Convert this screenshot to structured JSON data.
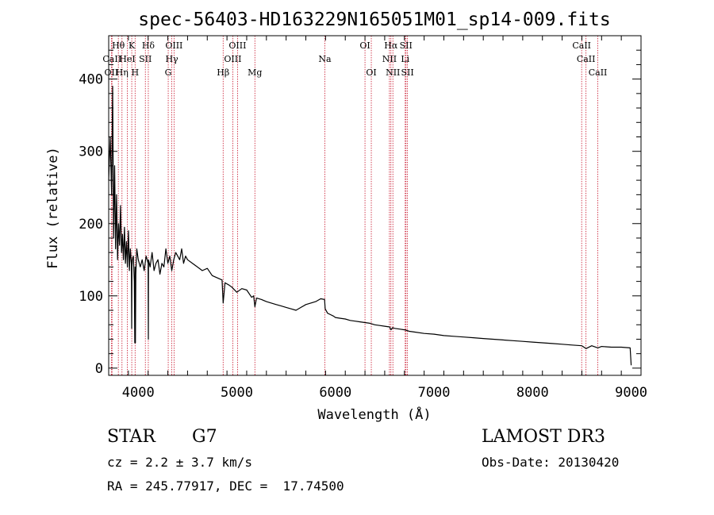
{
  "chart_data": {
    "type": "line",
    "title": "spec-56403-HD163229N165051M01_sp14-009.fits",
    "xlabel": "Wavelength (Å)",
    "ylabel": "Flux (relative)",
    "xlim": [
      3700,
      9100
    ],
    "ylim": [
      -10,
      460
    ],
    "xticks": [
      4000,
      5000,
      6000,
      7000,
      8000,
      9000
    ],
    "yticks": [
      0,
      100,
      200,
      300,
      400
    ],
    "colors": {
      "spectrum": "#000000",
      "lines": "#c8142b",
      "axes": "#000000"
    },
    "series": [
      {
        "name": "flux",
        "x": [
          3700,
          3715,
          3730,
          3740,
          3750,
          3760,
          3770,
          3780,
          3790,
          3800,
          3810,
          3820,
          3830,
          3840,
          3850,
          3860,
          3870,
          3880,
          3890,
          3900,
          3910,
          3920,
          3930,
          3933,
          3936,
          3940,
          3950,
          3960,
          3965,
          3968,
          3971,
          3975,
          3985,
          4000,
          4020,
          4040,
          4060,
          4080,
          4100,
          4102,
          4104,
          4120,
          4140,
          4160,
          4180,
          4200,
          4220,
          4240,
          4260,
          4280,
          4300,
          4320,
          4340,
          4360,
          4380,
          4400,
          4420,
          4440,
          4460,
          4480,
          4500,
          4550,
          4600,
          4650,
          4700,
          4750,
          4800,
          4850,
          4861,
          4880,
          4920,
          4950,
          5000,
          5050,
          5100,
          5150,
          5170,
          5183,
          5200,
          5250,
          5300,
          5350,
          5400,
          5450,
          5500,
          5550,
          5600,
          5650,
          5700,
          5750,
          5800,
          5850,
          5890,
          5896,
          5920,
          5950,
          5980,
          6000,
          6050,
          6100,
          6150,
          6200,
          6250,
          6300,
          6350,
          6400,
          6450,
          6500,
          6550,
          6563,
          6580,
          6600,
          6650,
          6700,
          6750,
          6800,
          6900,
          7000,
          7100,
          7200,
          7300,
          7400,
          7500,
          7600,
          7700,
          7800,
          7900,
          8000,
          8100,
          8200,
          8300,
          8400,
          8500,
          8542,
          8600,
          8662,
          8700,
          8800,
          8900,
          8990,
          9000
        ],
        "values": [
          260,
          320,
          240,
          390,
          180,
          280,
          165,
          240,
          150,
          200,
          170,
          225,
          160,
          185,
          150,
          195,
          145,
          175,
          140,
          190,
          135,
          165,
          145,
          55,
          140,
          150,
          155,
          120,
          35,
          140,
          35,
          130,
          165,
          150,
          140,
          150,
          135,
          155,
          145,
          40,
          150,
          140,
          160,
          135,
          145,
          150,
          130,
          145,
          140,
          165,
          145,
          155,
          135,
          150,
          160,
          155,
          150,
          165,
          145,
          155,
          150,
          145,
          140,
          135,
          138,
          128,
          125,
          122,
          90,
          118,
          115,
          112,
          105,
          110,
          108,
          98,
          100,
          85,
          97,
          95,
          92,
          90,
          88,
          86,
          84,
          82,
          80,
          84,
          88,
          90,
          92,
          96,
          95,
          82,
          76,
          74,
          72,
          70,
          69,
          68,
          66,
          65,
          64,
          63,
          62,
          60,
          59,
          58,
          57,
          53,
          56,
          55,
          54,
          53,
          51,
          50,
          48,
          47,
          45,
          44,
          43,
          42,
          41,
          40,
          39,
          38,
          37,
          36,
          35,
          34,
          33,
          32,
          31,
          27,
          31,
          28,
          30,
          29,
          29,
          28,
          4
        ]
      }
    ],
    "spectral_lines": [
      {
        "label": "Hθ",
        "wavelength": 3798,
        "row": 1
      },
      {
        "label": "CaII",
        "wavelength": 3734,
        "row": 2
      },
      {
        "label": "OII",
        "wavelength": 3727,
        "row": 3
      },
      {
        "label": "Hη",
        "wavelength": 3835,
        "row": 3
      },
      {
        "label": "HeI",
        "wavelength": 3889,
        "row": 2
      },
      {
        "label": "K",
        "wavelength": 3934,
        "row": 1
      },
      {
        "label": "SII",
        "wavelength": 4072,
        "row": 2
      },
      {
        "label": "H",
        "wavelength": 3968,
        "row": 3
      },
      {
        "label": "Hδ",
        "wavelength": 4102,
        "row": 1
      },
      {
        "label": "OIII",
        "wavelength": 4363,
        "row": 1
      },
      {
        "label": "Hγ",
        "wavelength": 4340,
        "row": 2
      },
      {
        "label": "G",
        "wavelength": 4304,
        "row": 3
      },
      {
        "label": "Hβ",
        "wavelength": 4861,
        "row": 3
      },
      {
        "label": "OIII",
        "wavelength": 5007,
        "row": 1
      },
      {
        "label": "OIII",
        "wavelength": 4959,
        "row": 2
      },
      {
        "label": "Mg",
        "wavelength": 5183,
        "row": 3
      },
      {
        "label": "Na",
        "wavelength": 5893,
        "row": 2
      },
      {
        "label": "OI",
        "wavelength": 6300,
        "row": 1
      },
      {
        "label": "OI",
        "wavelength": 6364,
        "row": 3
      },
      {
        "label": "Hα",
        "wavelength": 6563,
        "row": 1
      },
      {
        "label": "SII",
        "wavelength": 6716,
        "row": 1
      },
      {
        "label": "NII",
        "wavelength": 6548,
        "row": 2
      },
      {
        "label": "Li",
        "wavelength": 6708,
        "row": 2
      },
      {
        "label": "NII",
        "wavelength": 6583,
        "row": 3
      },
      {
        "label": "SII",
        "wavelength": 6731,
        "row": 3
      },
      {
        "label": "CaII",
        "wavelength": 8498,
        "row": 1
      },
      {
        "label": "CaII",
        "wavelength": 8542,
        "row": 2
      },
      {
        "label": "CaII",
        "wavelength": 8662,
        "row": 3
      }
    ]
  },
  "info": {
    "object_class": "STAR",
    "subclass": "G7",
    "redshift": "cz = 2.2 ± 3.7 km/s",
    "coordinates": "RA = 245.77917, DEC =  17.74500",
    "survey": "LAMOST DR3",
    "obs_date": "Obs-Date: 20130420"
  }
}
